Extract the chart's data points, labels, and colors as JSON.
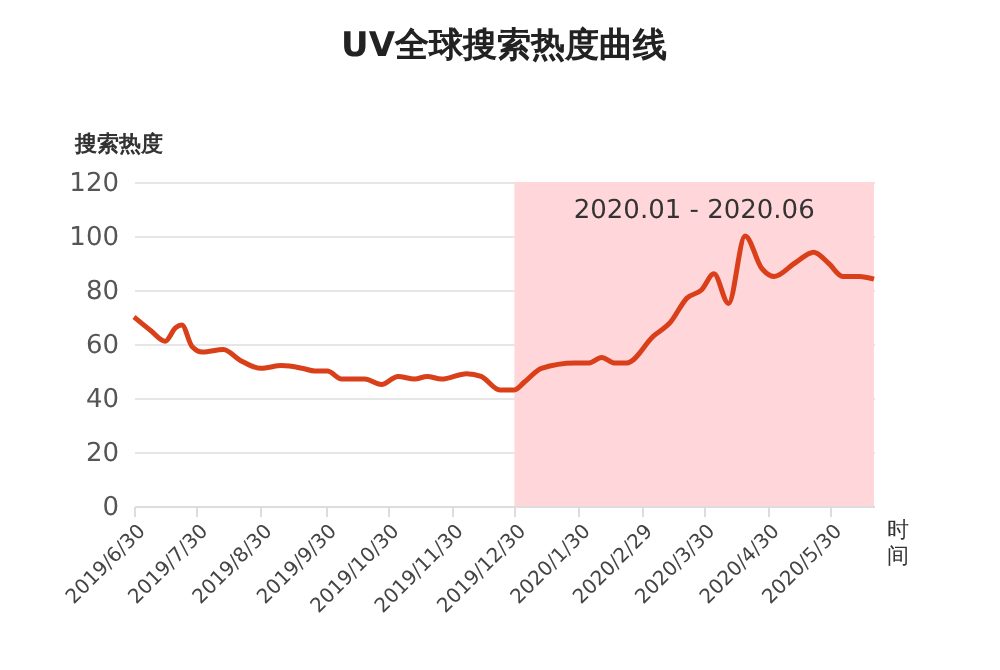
{
  "chart_data": {
    "type": "line",
    "title": "UV全球搜索热度曲线",
    "ylabel": "搜索热度",
    "xlabel": "时间",
    "x": [
      "2019-06-30",
      "2019-07-08",
      "2019-07-15",
      "2019-07-20",
      "2019-07-23",
      "2019-07-28",
      "2019-08-02",
      "2019-08-12",
      "2019-08-20",
      "2019-08-30",
      "2019-09-09",
      "2019-09-19",
      "2019-09-25",
      "2019-10-01",
      "2019-10-08",
      "2019-10-19",
      "2019-10-27",
      "2019-11-04",
      "2019-11-12",
      "2019-11-18",
      "2019-11-25",
      "2019-12-07",
      "2019-12-14",
      "2019-12-23",
      "2019-12-30",
      "2020-01-04",
      "2020-01-12",
      "2020-01-28",
      "2020-02-04",
      "2020-02-10",
      "2020-02-16",
      "2020-02-22",
      "2020-03-06",
      "2020-03-14",
      "2020-03-22",
      "2020-03-29",
      "2020-04-04",
      "2020-04-11",
      "2020-04-19",
      "2020-04-27",
      "2020-05-03",
      "2020-05-13",
      "2020-05-22",
      "2020-05-29",
      "2020-06-05",
      "2020-06-13",
      "2020-06-20"
    ],
    "series": [
      {
        "color": "#d9401a",
        "values": [
          70,
          65,
          61,
          66,
          67,
          59,
          57,
          58,
          54,
          51,
          52,
          51,
          50,
          50,
          47,
          47,
          45,
          48,
          47,
          48,
          47,
          49,
          48,
          43,
          43,
          46,
          51,
          53,
          53,
          55,
          53,
          53,
          63,
          68,
          77,
          80,
          86,
          75,
          100,
          88,
          85,
          90,
          94,
          90,
          85,
          85,
          84
        ]
      }
    ],
    "xlim": [
      "2019-06-30",
      "2020-06-20"
    ],
    "xticks": [
      {
        "value": "2019-06-30",
        "label": "2019/6/30"
      },
      {
        "value": "2019-07-30",
        "label": "2019/7/30"
      },
      {
        "value": "2019-08-30",
        "label": "2019/8/30"
      },
      {
        "value": "2019-09-30",
        "label": "2019/9/30"
      },
      {
        "value": "2019-10-30",
        "label": "2019/10/30"
      },
      {
        "value": "2019-11-30",
        "label": "2019/11/30"
      },
      {
        "value": "2019-12-30",
        "label": "2019/12/30"
      },
      {
        "value": "2020-01-30",
        "label": "2020/1/30"
      },
      {
        "value": "2020-02-29",
        "label": "2020/2/29"
      },
      {
        "value": "2020-03-30",
        "label": "2020/3/30"
      },
      {
        "value": "2020-04-30",
        "label": "2020/4/30"
      },
      {
        "value": "2020-05-30",
        "label": "2020/5/30"
      }
    ],
    "ylim": [
      0,
      120
    ],
    "yticks": [
      0,
      20,
      40,
      60,
      80,
      100,
      120
    ],
    "grid": "y",
    "marker": "none",
    "line_style": "solid",
    "bands": [
      {
        "axis": "x",
        "from": "2019-12-30",
        "to": "2020-06-20",
        "label": "2020.01 - 2020.06",
        "color": "#ffd6da"
      }
    ]
  }
}
